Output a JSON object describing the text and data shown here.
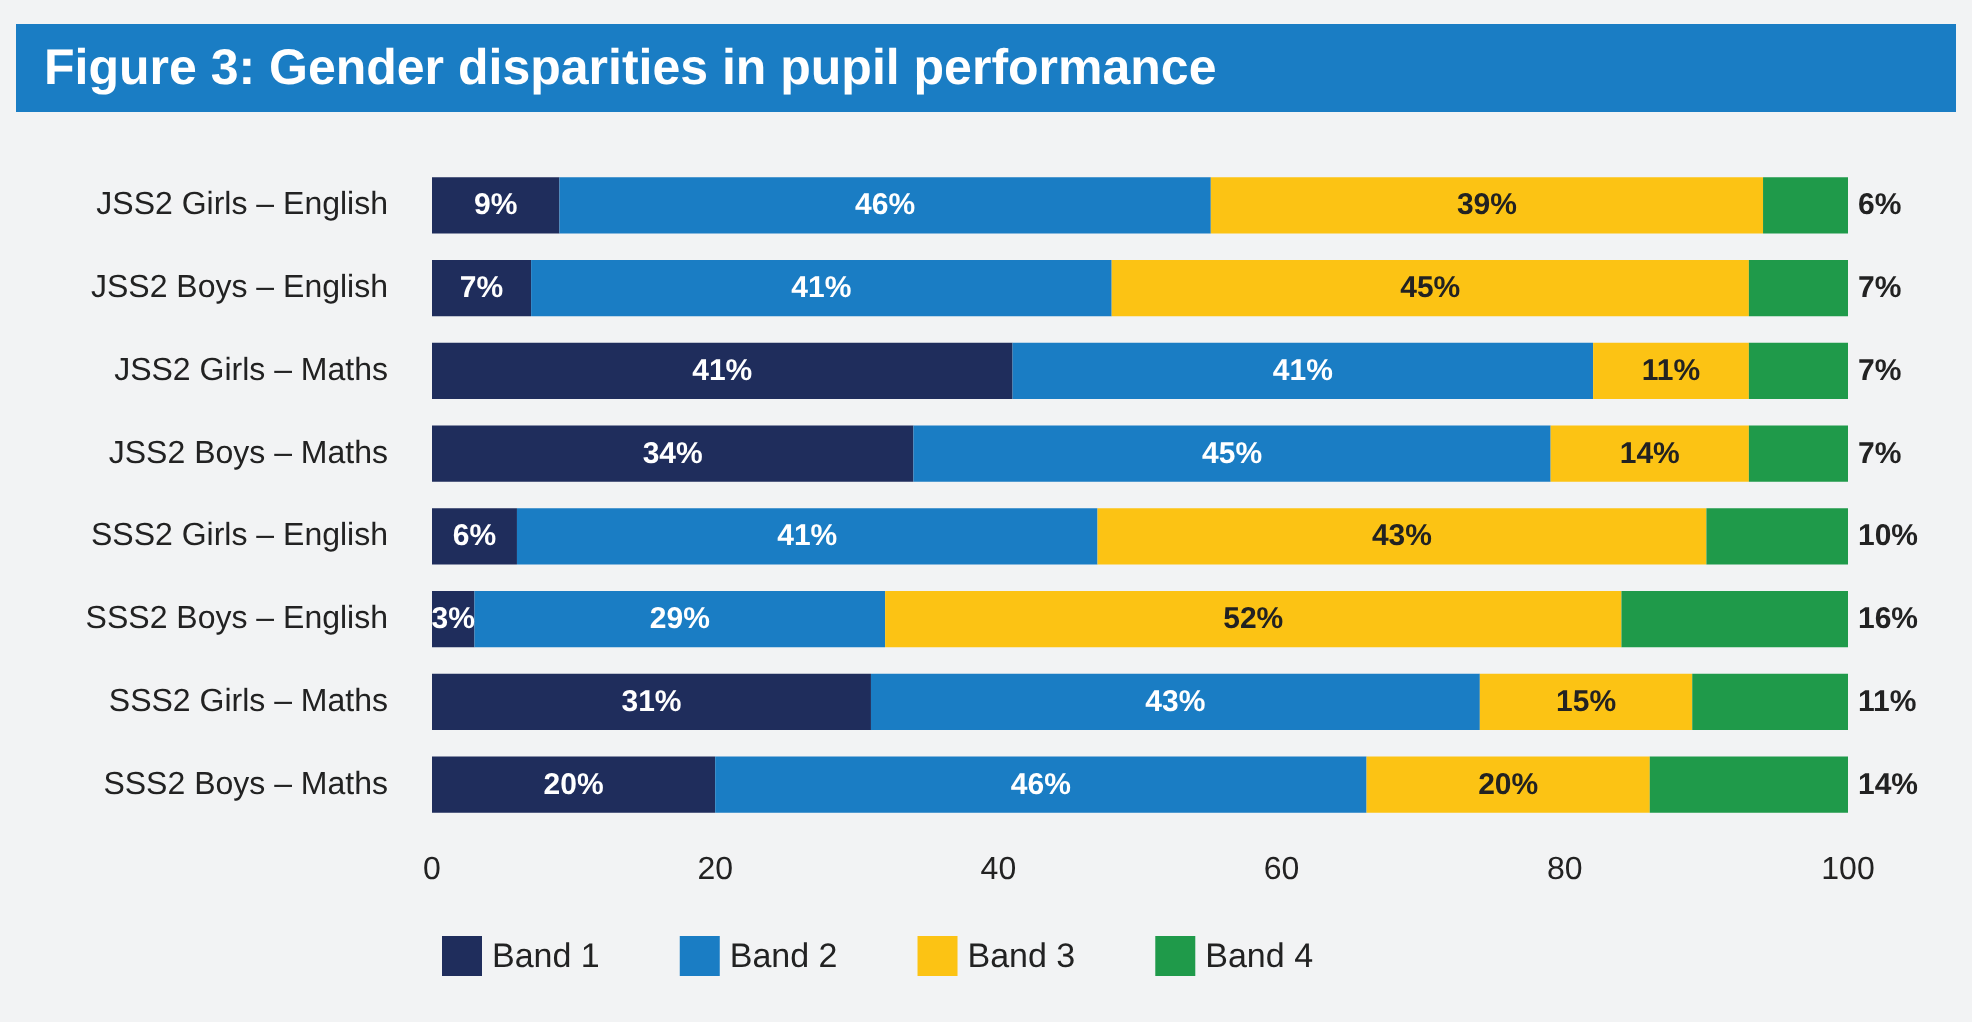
{
  "chart_data": {
    "type": "bar",
    "orientation": "horizontal",
    "stacked": true,
    "title": "Figure 3: Gender disparities in pupil performance",
    "categories": [
      "JSS2 Girls – English",
      "JSS2 Boys – English",
      "JSS2 Girls – Maths",
      "JSS2 Boys – Maths",
      "SSS2 Girls – English",
      "SSS2 Boys – English",
      "SSS2 Girls – Maths",
      "SSS2 Boys – Maths"
    ],
    "series": [
      {
        "name": "Band 1",
        "color": "#1f2d5c",
        "values": [
          9,
          7,
          41,
          34,
          6,
          3,
          31,
          20
        ],
        "value_labels": [
          "9%",
          "7%",
          "41%",
          "34%",
          "6%",
          "3%",
          "31%",
          "20%"
        ]
      },
      {
        "name": "Band 2",
        "color": "#1a7dc4",
        "values": [
          46,
          41,
          41,
          45,
          41,
          29,
          43,
          46
        ],
        "value_labels": [
          "46%",
          "41%",
          "41%",
          "45%",
          "41%",
          "29%",
          "43%",
          "46%"
        ]
      },
      {
        "name": "Band 3",
        "color": "#fcc314",
        "values": [
          39,
          45,
          11,
          14,
          43,
          52,
          15,
          20
        ],
        "value_labels": [
          "39%",
          "45%",
          "11%",
          "14%",
          "43%",
          "52%",
          "15%",
          "20%"
        ]
      },
      {
        "name": "Band 4",
        "color": "#1f9a4a",
        "values": [
          6,
          7,
          7,
          7,
          10,
          16,
          11,
          14
        ],
        "value_labels": [
          "6%",
          "7%",
          "7%",
          "7%",
          "10%",
          "16%",
          "11%",
          "14%"
        ]
      }
    ],
    "xlim": [
      0,
      100
    ],
    "xticks": [
      0,
      20,
      40,
      60,
      80,
      100
    ],
    "grid": false,
    "legend": "bottom"
  }
}
